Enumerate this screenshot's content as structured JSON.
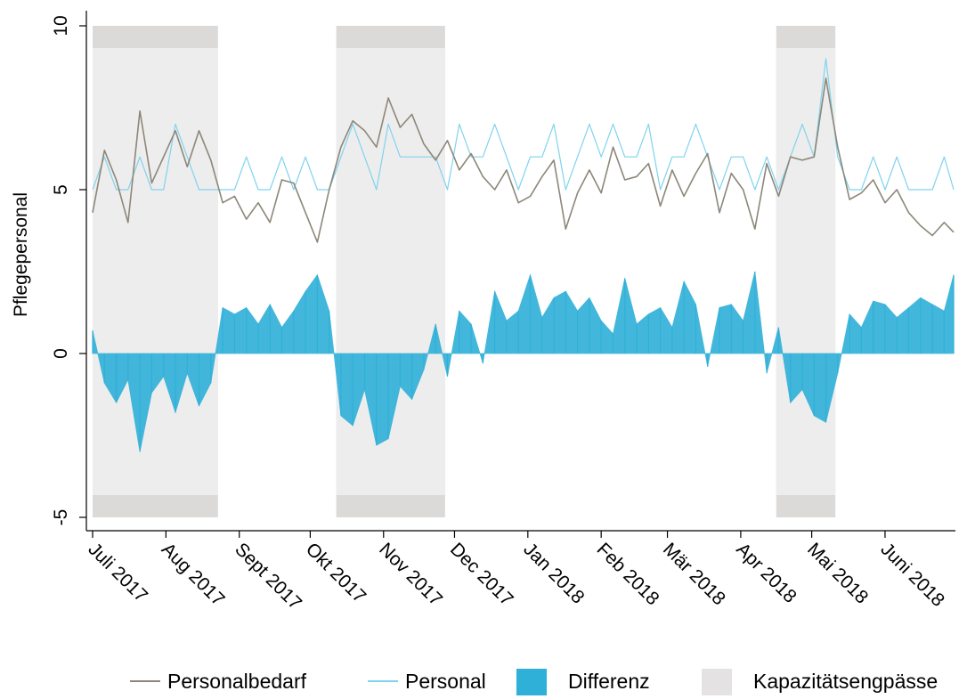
{
  "chart_data": {
    "type": "line",
    "title": "",
    "xlabel": "",
    "ylabel": "Pflegepersonal",
    "ylim": [
      -5,
      10
    ],
    "xlim": [
      "2017-07-01",
      "2018-06-30"
    ],
    "grid": false,
    "legend_position": "bottom",
    "yticks": [
      -5,
      0,
      5,
      10
    ],
    "xticks": [
      {
        "date": "2017-07-01",
        "label": "Juli 2017"
      },
      {
        "date": "2017-08-01",
        "label": "Aug 2017"
      },
      {
        "date": "2017-09-01",
        "label": "Sept 2017"
      },
      {
        "date": "2017-10-01",
        "label": "Okt 2017"
      },
      {
        "date": "2017-11-01",
        "label": "Nov 2017"
      },
      {
        "date": "2017-12-01",
        "label": "Dec 2017"
      },
      {
        "date": "2018-01-01",
        "label": "Jan 2018"
      },
      {
        "date": "2018-02-01",
        "label": "Feb 2018"
      },
      {
        "date": "2018-03-01",
        "label": "Mär 2018"
      },
      {
        "date": "2018-04-01",
        "label": "Apr 2018"
      },
      {
        "date": "2018-05-01",
        "label": "Mai 2018"
      },
      {
        "date": "2018-06-01",
        "label": "Juni 2018"
      }
    ],
    "shaded_periods": [
      {
        "start": "2017-07-01",
        "end": "2017-08-23"
      },
      {
        "start": "2017-10-12",
        "end": "2017-11-27"
      },
      {
        "start": "2018-04-16",
        "end": "2018-05-11"
      }
    ],
    "series": [
      {
        "name": "Personalbedarf",
        "color": "#8c8779",
        "x": [
          "2017-07-01",
          "2017-07-06",
          "2017-07-11",
          "2017-07-16",
          "2017-07-21",
          "2017-07-26",
          "2017-07-31",
          "2017-08-05",
          "2017-08-10",
          "2017-08-15",
          "2017-08-20",
          "2017-08-25",
          "2017-08-30",
          "2017-09-04",
          "2017-09-09",
          "2017-09-14",
          "2017-09-19",
          "2017-09-24",
          "2017-09-29",
          "2017-10-04",
          "2017-10-09",
          "2017-10-14",
          "2017-10-19",
          "2017-10-24",
          "2017-10-29",
          "2017-11-03",
          "2017-11-08",
          "2017-11-13",
          "2017-11-18",
          "2017-11-23",
          "2017-11-28",
          "2017-12-03",
          "2017-12-08",
          "2017-12-13",
          "2017-12-18",
          "2017-12-23",
          "2017-12-28",
          "2018-01-02",
          "2018-01-07",
          "2018-01-12",
          "2018-01-17",
          "2018-01-22",
          "2018-01-27",
          "2018-02-01",
          "2018-02-06",
          "2018-02-11",
          "2018-02-16",
          "2018-02-21",
          "2018-02-26",
          "2018-03-03",
          "2018-03-08",
          "2018-03-13",
          "2018-03-18",
          "2018-03-23",
          "2018-03-28",
          "2018-04-02",
          "2018-04-07",
          "2018-04-12",
          "2018-04-17",
          "2018-04-22",
          "2018-04-27",
          "2018-05-02",
          "2018-05-07",
          "2018-05-12",
          "2018-05-17",
          "2018-05-22",
          "2018-05-27",
          "2018-06-01",
          "2018-06-06",
          "2018-06-11",
          "2018-06-16",
          "2018-06-21",
          "2018-06-26",
          "2018-06-30"
        ],
        "values": [
          4.3,
          6.2,
          5.3,
          4.0,
          7.4,
          5.2,
          6.0,
          6.8,
          5.7,
          6.8,
          5.9,
          4.6,
          4.8,
          4.1,
          4.6,
          4.0,
          5.3,
          5.2,
          4.3,
          3.4,
          5.0,
          6.3,
          7.1,
          6.8,
          6.3,
          7.8,
          6.9,
          7.3,
          6.4,
          5.9,
          6.5,
          5.6,
          6.1,
          5.4,
          5.0,
          5.6,
          4.6,
          4.8,
          5.4,
          5.9,
          3.8,
          4.9,
          5.6,
          4.9,
          6.3,
          5.3,
          5.4,
          5.8,
          4.5,
          5.6,
          4.8,
          5.5,
          6.1,
          4.3,
          5.5,
          5.0,
          3.8,
          5.8,
          4.8,
          6.0,
          5.9,
          6.0,
          8.4,
          6.3,
          4.7,
          4.9,
          5.3,
          4.6,
          5.0,
          4.3,
          3.9,
          3.6,
          4.0,
          3.7
        ]
      },
      {
        "name": "Personal",
        "color": "#7fd3ee",
        "x": [
          "2017-07-01",
          "2017-07-06",
          "2017-07-11",
          "2017-07-16",
          "2017-07-21",
          "2017-07-26",
          "2017-07-31",
          "2017-08-05",
          "2017-08-10",
          "2017-08-15",
          "2017-08-20",
          "2017-08-25",
          "2017-08-30",
          "2017-09-04",
          "2017-09-09",
          "2017-09-14",
          "2017-09-19",
          "2017-09-24",
          "2017-09-29",
          "2017-10-04",
          "2017-10-09",
          "2017-10-14",
          "2017-10-19",
          "2017-10-24",
          "2017-10-29",
          "2017-11-03",
          "2017-11-08",
          "2017-11-13",
          "2017-11-18",
          "2017-11-23",
          "2017-11-28",
          "2017-12-03",
          "2017-12-08",
          "2017-12-13",
          "2017-12-18",
          "2017-12-23",
          "2017-12-28",
          "2018-01-02",
          "2018-01-07",
          "2018-01-12",
          "2018-01-17",
          "2018-01-22",
          "2018-01-27",
          "2018-02-01",
          "2018-02-06",
          "2018-02-11",
          "2018-02-16",
          "2018-02-21",
          "2018-02-26",
          "2018-03-03",
          "2018-03-08",
          "2018-03-13",
          "2018-03-18",
          "2018-03-23",
          "2018-03-28",
          "2018-04-02",
          "2018-04-07",
          "2018-04-12",
          "2018-04-17",
          "2018-04-22",
          "2018-04-27",
          "2018-05-02",
          "2018-05-07",
          "2018-05-12",
          "2018-05-17",
          "2018-05-22",
          "2018-05-27",
          "2018-06-01",
          "2018-06-06",
          "2018-06-11",
          "2018-06-16",
          "2018-06-21",
          "2018-06-26",
          "2018-06-30"
        ],
        "values": [
          5,
          6,
          5,
          5,
          6,
          5,
          5,
          7,
          6,
          5,
          5,
          5,
          5,
          6,
          5,
          5,
          6,
          5,
          6,
          5,
          5,
          6,
          7,
          6,
          5,
          7,
          6,
          6,
          6,
          6,
          5,
          7,
          6,
          6,
          7,
          6,
          5,
          6,
          6,
          7,
          5,
          6,
          7,
          6,
          7,
          6,
          6,
          7,
          5,
          6,
          6,
          7,
          6,
          5,
          6,
          6,
          5,
          6,
          5,
          6,
          7,
          6,
          9,
          6,
          5,
          5,
          6,
          5,
          6,
          5,
          5,
          5,
          6,
          5
        ]
      },
      {
        "name": "Differenz",
        "color": "#2fb0d8",
        "x": [
          "2017-07-01",
          "2017-07-06",
          "2017-07-11",
          "2017-07-16",
          "2017-07-21",
          "2017-07-26",
          "2017-07-31",
          "2017-08-05",
          "2017-08-10",
          "2017-08-15",
          "2017-08-20",
          "2017-08-25",
          "2017-08-30",
          "2017-09-04",
          "2017-09-09",
          "2017-09-14",
          "2017-09-19",
          "2017-09-24",
          "2017-09-29",
          "2017-10-04",
          "2017-10-09",
          "2017-10-14",
          "2017-10-19",
          "2017-10-24",
          "2017-10-29",
          "2017-11-03",
          "2017-11-08",
          "2017-11-13",
          "2017-11-18",
          "2017-11-23",
          "2017-11-28",
          "2017-12-03",
          "2017-12-08",
          "2017-12-13",
          "2017-12-18",
          "2017-12-23",
          "2017-12-28",
          "2018-01-02",
          "2018-01-07",
          "2018-01-12",
          "2018-01-17",
          "2018-01-22",
          "2018-01-27",
          "2018-02-01",
          "2018-02-06",
          "2018-02-11",
          "2018-02-16",
          "2018-02-21",
          "2018-02-26",
          "2018-03-03",
          "2018-03-08",
          "2018-03-13",
          "2018-03-18",
          "2018-03-23",
          "2018-03-28",
          "2018-04-02",
          "2018-04-07",
          "2018-04-12",
          "2018-04-17",
          "2018-04-22",
          "2018-04-27",
          "2018-05-02",
          "2018-05-07",
          "2018-05-12",
          "2018-05-17",
          "2018-05-22",
          "2018-05-27",
          "2018-06-01",
          "2018-06-06",
          "2018-06-11",
          "2018-06-16",
          "2018-06-21",
          "2018-06-26",
          "2018-06-30"
        ],
        "values": [
          0.7,
          -0.9,
          -1.5,
          -0.8,
          -3.0,
          -1.2,
          -0.7,
          -1.8,
          -0.6,
          -1.6,
          -0.9,
          1.4,
          1.2,
          1.4,
          0.9,
          1.5,
          0.8,
          1.3,
          1.9,
          2.4,
          1.3,
          -1.9,
          -2.2,
          -1.1,
          -2.8,
          -2.6,
          -1.0,
          -1.4,
          -0.5,
          0.9,
          -0.7,
          1.3,
          0.9,
          -0.3,
          1.9,
          1.0,
          1.3,
          2.4,
          1.1,
          1.7,
          1.9,
          1.3,
          1.7,
          1.0,
          0.6,
          2.3,
          0.9,
          1.2,
          1.4,
          0.8,
          2.2,
          1.5,
          -0.4,
          1.4,
          1.5,
          1.0,
          2.5,
          -0.6,
          0.8,
          -1.5,
          -1.1,
          -1.9,
          -2.1,
          -0.6,
          1.2,
          0.8,
          1.6,
          1.5,
          1.1,
          1.4,
          1.7,
          1.5,
          1.3,
          2.4
        ]
      }
    ],
    "legend": [
      {
        "label": "Personalbedarf",
        "kind": "line",
        "color": "#8c8779"
      },
      {
        "label": "Personal",
        "kind": "line",
        "color": "#7fd3ee"
      },
      {
        "label": "Differenz",
        "kind": "area",
        "color": "#2fb0d8"
      },
      {
        "label": "Kapazitätsengpässe",
        "kind": "area",
        "color": "#e4e2e2"
      }
    ]
  }
}
